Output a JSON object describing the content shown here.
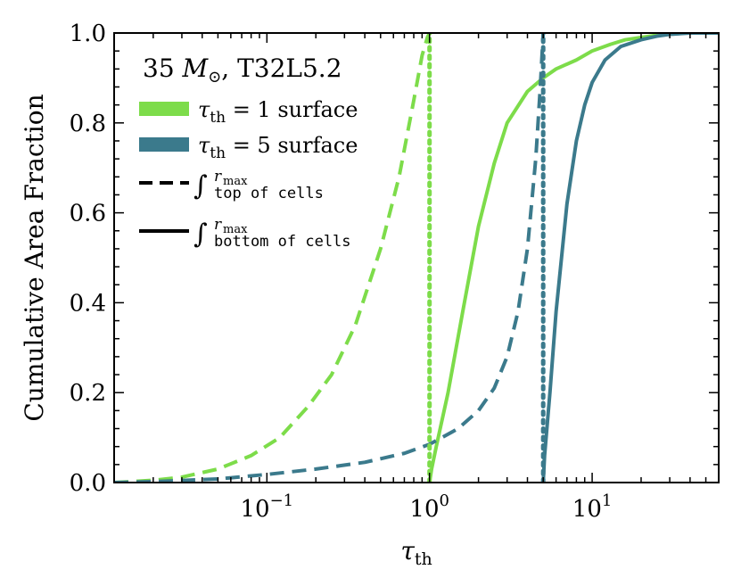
{
  "chart_data": {
    "type": "line",
    "xscale": "log",
    "xlim": [
      0.0115,
      60
    ],
    "ylim": [
      0.0,
      1.0
    ],
    "xlabel": "τ_th",
    "ylabel": "Cumulative Area Fraction",
    "annotation": "35 M⊙, T32L5.2",
    "colors": {
      "tau1": "#7ddc4a",
      "tau5": "#3b7a8c"
    },
    "x_ticks": [
      {
        "value": 0.1,
        "base": "10",
        "exp": "−1"
      },
      {
        "value": 1,
        "base": "10",
        "exp": "0"
      },
      {
        "value": 10,
        "base": "10",
        "exp": "1"
      }
    ],
    "y_ticks": [
      {
        "value": 0.0,
        "label": "0.0"
      },
      {
        "value": 0.2,
        "label": "0.2"
      },
      {
        "value": 0.4,
        "label": "0.4"
      },
      {
        "value": 0.6,
        "label": "0.6"
      },
      {
        "value": 0.8,
        "label": "0.8"
      },
      {
        "value": 1.0,
        "label": "1.0"
      }
    ],
    "legend": {
      "title": "35 M⊙, T32L5.2",
      "tau1_label": "τth = 1 surface",
      "tau5_label": "τth = 5 surface",
      "top_sup": "rmax",
      "top_sub": "top of cells",
      "bottom_sup": "rmax",
      "bottom_sub": "bottom of cells"
    },
    "series": [
      {
        "name": "tau1 top of cells",
        "color": "#7ddc4a",
        "style": "dashed",
        "x": [
          0.0115,
          0.02,
          0.03,
          0.05,
          0.08,
          0.12,
          0.18,
          0.25,
          0.35,
          0.5,
          0.65,
          0.8,
          0.9,
          0.97,
          1.0
        ],
        "y": [
          0.0,
          0.005,
          0.012,
          0.03,
          0.06,
          0.1,
          0.17,
          0.24,
          0.35,
          0.52,
          0.68,
          0.85,
          0.95,
          0.99,
          1.0
        ]
      },
      {
        "name": "tau1 bottom of cells",
        "color": "#7ddc4a",
        "style": "solid",
        "x": [
          1.0,
          1.03,
          1.1,
          1.3,
          1.6,
          2.0,
          2.5,
          3.0,
          4.0,
          5.0,
          6.0,
          8.0,
          10,
          13,
          16,
          20,
          25,
          30,
          60
        ],
        "y": [
          0.0,
          0.03,
          0.08,
          0.2,
          0.38,
          0.57,
          0.71,
          0.8,
          0.87,
          0.9,
          0.92,
          0.94,
          0.96,
          0.975,
          0.985,
          0.99,
          0.995,
          1.0,
          1.0
        ]
      },
      {
        "name": "tau5 top of cells",
        "color": "#3b7a8c",
        "style": "dashed",
        "x": [
          0.0115,
          0.02,
          0.05,
          0.1,
          0.2,
          0.4,
          0.7,
          1.0,
          1.5,
          2.0,
          2.5,
          3.0,
          3.5,
          4.0,
          4.5,
          4.8,
          5.0
        ],
        "y": [
          0.0,
          0.002,
          0.008,
          0.018,
          0.03,
          0.045,
          0.065,
          0.085,
          0.12,
          0.16,
          0.21,
          0.28,
          0.38,
          0.52,
          0.72,
          0.88,
          1.0
        ]
      },
      {
        "name": "tau5 bottom of cells",
        "color": "#3b7a8c",
        "style": "solid",
        "x": [
          5.0,
          5.1,
          5.5,
          6.0,
          7.0,
          8.0,
          9.0,
          10,
          12,
          15,
          20,
          25,
          30,
          40,
          60
        ],
        "y": [
          0.0,
          0.06,
          0.2,
          0.38,
          0.62,
          0.76,
          0.84,
          0.89,
          0.94,
          0.97,
          0.985,
          0.993,
          0.997,
          1.0,
          1.0
        ]
      },
      {
        "name": "tau1 threshold",
        "color": "#7ddc4a",
        "style": "dotted",
        "x": [
          1.0,
          1.0
        ],
        "y": [
          0.0,
          1.0
        ]
      },
      {
        "name": "tau5 threshold",
        "color": "#3b7a8c",
        "style": "dotted",
        "x": [
          5.0,
          5.0
        ],
        "y": [
          0.0,
          1.0
        ]
      }
    ]
  }
}
